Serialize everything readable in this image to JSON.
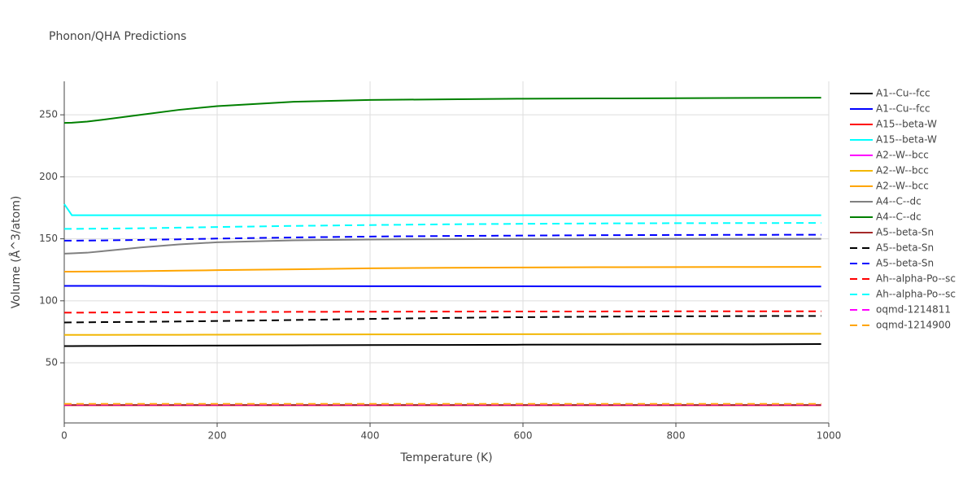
{
  "chart_data": {
    "type": "line",
    "title": "Phonon/QHA Predictions",
    "x_label": "Temperature (K)",
    "y_label": "Volume (Å^3/atom)",
    "x": [
      0,
      10,
      30,
      50,
      100,
      150,
      200,
      300,
      400,
      500,
      600,
      700,
      800,
      900,
      990
    ],
    "xlim": [
      0,
      1000
    ],
    "xticks": [
      0,
      200,
      400,
      600,
      800,
      1000
    ],
    "ylim": [
      1.5,
      277
    ],
    "yticks": [
      50,
      100,
      150,
      200,
      250
    ],
    "grid": true,
    "legend": "right",
    "series": [
      {
        "name": "A1--Cu--fcc",
        "color": "#000000",
        "dash": "solid",
        "values": [
          63.5,
          63.5,
          63.6,
          63.6,
          63.7,
          63.8,
          63.9,
          64.1,
          64.3,
          64.4,
          64.6,
          64.7,
          64.8,
          64.9,
          65.1
        ]
      },
      {
        "name": "A1--Cu--fcc",
        "color": "#0000ff",
        "dash": "solid",
        "values": [
          112,
          112,
          112,
          112,
          112,
          111.9,
          111.9,
          111.9,
          111.8,
          111.7,
          111.7,
          111.6,
          111.5,
          111.5,
          111.5
        ]
      },
      {
        "name": "A15--beta-W",
        "color": "#ff0000",
        "dash": "solid",
        "values": [
          15.8,
          15.8,
          15.8,
          15.8,
          15.8,
          15.8,
          15.8,
          15.8,
          15.8,
          15.8,
          15.8,
          15.8,
          15.8,
          15.8,
          15.8
        ]
      },
      {
        "name": "A15--beta-W",
        "color": "#00ffff",
        "dash": "solid",
        "values": [
          178,
          169,
          169,
          169,
          169,
          169,
          169,
          169,
          169,
          169,
          169,
          169,
          169,
          169,
          169
        ]
      },
      {
        "name": "A2--W--bcc",
        "color": "#ff00ff",
        "dash": "solid",
        "values": [
          15.9,
          15.9,
          15.9,
          15.9,
          15.9,
          15.9,
          15.9,
          15.9,
          15.9,
          15.9,
          15.9,
          15.9,
          15.9,
          15.9,
          15.9
        ]
      },
      {
        "name": "A2--W--bcc",
        "color": "#f2b705",
        "dash": "solid",
        "values": [
          72.5,
          72.5,
          72.5,
          72.5,
          72.6,
          72.6,
          72.7,
          72.8,
          72.9,
          73,
          73.1,
          73.2,
          73.3,
          73.3,
          73.4
        ]
      },
      {
        "name": "A2--W--bcc",
        "color": "#ffa500",
        "dash": "solid",
        "values": [
          123.5,
          123.5,
          123.6,
          123.7,
          123.9,
          124.3,
          124.7,
          125.4,
          126.2,
          126.6,
          126.9,
          127.1,
          127.2,
          127.3,
          127.4
        ]
      },
      {
        "name": "A4--C--dc",
        "color": "#808080",
        "dash": "solid",
        "values": [
          138,
          138.3,
          138.8,
          140,
          143,
          145.5,
          147.2,
          148.8,
          149.4,
          149.7,
          149.8,
          149.9,
          150,
          150,
          150
        ]
      },
      {
        "name": "A4--C--dc",
        "color": "#008000",
        "dash": "solid",
        "values": [
          243.5,
          243.6,
          244.5,
          246,
          250,
          254,
          257,
          260.5,
          262,
          262.5,
          263,
          263.2,
          263.4,
          263.6,
          263.8
        ]
      },
      {
        "name": "A5--beta-Sn",
        "color": "#a52a2a",
        "dash": "solid",
        "values": [
          16,
          16,
          16,
          16,
          16,
          16,
          16,
          16,
          16,
          16,
          16,
          16,
          16,
          16,
          16
        ]
      },
      {
        "name": "A5--beta-Sn",
        "color": "#000000",
        "dash": "dash",
        "values": [
          82.5,
          82.6,
          82.7,
          82.8,
          83,
          83.3,
          83.7,
          84.5,
          85.4,
          86.2,
          86.8,
          87.2,
          87.5,
          87.7,
          87.8
        ]
      },
      {
        "name": "A5--beta-Sn",
        "color": "#0000ff",
        "dash": "dash",
        "values": [
          148.5,
          148.5,
          148.6,
          148.7,
          149.1,
          149.6,
          150.2,
          151.1,
          151.8,
          152.3,
          152.6,
          152.9,
          153.1,
          153.2,
          153.3
        ]
      },
      {
        "name": "Ah--alpha-Po--sc",
        "color": "#ff0000",
        "dash": "dash",
        "values": [
          90.5,
          90.5,
          90.5,
          90.6,
          90.7,
          90.8,
          90.9,
          91.1,
          91.2,
          91.3,
          91.4,
          91.4,
          91.5,
          91.5,
          91.5
        ]
      },
      {
        "name": "Ah--alpha-Po--sc",
        "color": "#00ffff",
        "dash": "dash",
        "values": [
          158,
          158,
          158.1,
          158.2,
          158.5,
          159,
          159.5,
          160.4,
          161.1,
          161.7,
          162.1,
          162.4,
          162.6,
          162.7,
          162.8
        ]
      },
      {
        "name": "oqmd-1214811",
        "color": "#ff00ff",
        "dash": "dash",
        "values": [
          16.3,
          16.3,
          16.3,
          16.3,
          16.3,
          16.3,
          16.3,
          16.3,
          16.3,
          16.3,
          16.3,
          16.3,
          16.3,
          16.3,
          16.3
        ]
      },
      {
        "name": "oqmd-1214900",
        "color": "#ffa500",
        "dash": "dash",
        "values": [
          16.8,
          16.8,
          16.8,
          16.8,
          16.8,
          16.8,
          16.8,
          16.8,
          16.8,
          16.8,
          16.8,
          16.8,
          16.8,
          16.8,
          16.8
        ]
      }
    ]
  }
}
